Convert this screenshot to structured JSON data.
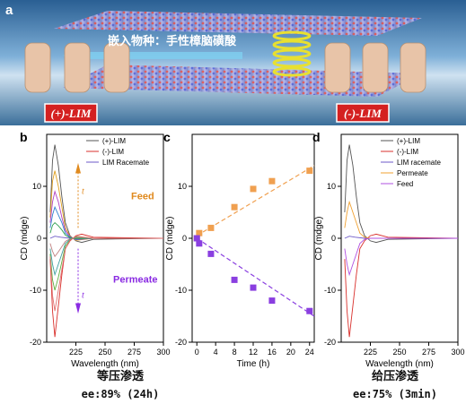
{
  "panel_a": {
    "letter": "a",
    "caption": "嵌入物种：手性樟脑磺酸",
    "label_left": "(+)-LIM",
    "label_right": "(-)-LIM"
  },
  "footer": {
    "left_title": "等压渗透",
    "left_ee": "ee:89% (24h)",
    "right_title": "给压渗透",
    "right_ee": "ee:75% (3min)"
  },
  "colors": {
    "plus": "#555555",
    "minus": "#d9302c",
    "racemate": "#6e5ac8",
    "permeate_line": "#f0a030",
    "feed_line": "#b050e0",
    "feed_text": "#e08a1e",
    "permeate_text": "#8a2be2",
    "feed_marker": "#f0a050",
    "perm_marker": "#8a3fe0"
  },
  "chart_data": [
    {
      "id": "b",
      "letter": "b",
      "type": "line",
      "xlabel": "Wavelength (nm)",
      "ylabel": "CD (mdge)",
      "xlim": [
        200,
        300
      ],
      "ylim": [
        -20,
        20
      ],
      "xticks": [
        225,
        250,
        275,
        300
      ],
      "yticks": [
        -20,
        -10,
        0,
        10
      ],
      "legend": [
        "(+)-LIM",
        "(-)-LIM",
        "LIM Racemate"
      ],
      "annotations": [
        "Feed",
        "Permeate",
        "t",
        "t"
      ],
      "series": [
        {
          "name": "(+)-LIM",
          "color": "plus",
          "x": [
            203,
            205,
            207,
            210,
            213,
            216,
            220,
            225,
            230,
            240,
            300
          ],
          "y": [
            5,
            15,
            18,
            14,
            8,
            3,
            0.5,
            -0.5,
            -0.8,
            -0.2,
            0
          ]
        },
        {
          "name": "(-)-LIM",
          "color": "minus",
          "x": [
            203,
            205,
            207,
            210,
            213,
            216,
            220,
            225,
            230,
            240,
            300
          ],
          "y": [
            -4,
            -14,
            -19,
            -13,
            -7,
            -2,
            -0.5,
            0.5,
            0.8,
            0.2,
            0
          ]
        },
        {
          "name": "LIM Racemate",
          "color": "racemate",
          "x": [
            203,
            207,
            212,
            220,
            230,
            300
          ],
          "y": [
            0,
            0.4,
            0.2,
            0,
            0,
            0
          ]
        },
        {
          "name": "",
          "color": "#e0a020",
          "x": [
            203,
            205,
            207,
            210,
            213,
            216,
            220,
            225,
            240,
            300
          ],
          "y": [
            4,
            11,
            13,
            10,
            6,
            2,
            0.4,
            -0.4,
            0,
            0
          ]
        },
        {
          "name": "",
          "color": "#b040c0",
          "x": [
            203,
            205,
            207,
            210,
            213,
            216,
            220,
            225,
            240,
            300
          ],
          "y": [
            3,
            7,
            9,
            7,
            4,
            1.5,
            0.3,
            -0.3,
            0,
            0
          ]
        },
        {
          "name": "",
          "color": "#3080d0",
          "x": [
            203,
            205,
            207,
            210,
            213,
            216,
            220,
            225,
            240,
            300
          ],
          "y": [
            2,
            4.5,
            6,
            4.5,
            3,
            1,
            0.2,
            -0.2,
            0,
            0
          ]
        },
        {
          "name": "",
          "color": "#30a050",
          "x": [
            203,
            205,
            207,
            210,
            213,
            216,
            220,
            225,
            240,
            300
          ],
          "y": [
            1,
            2.5,
            3,
            2.4,
            1.6,
            0.6,
            0.1,
            -0.1,
            0,
            0
          ]
        },
        {
          "name": "",
          "color": "#c08080",
          "x": [
            203,
            205,
            207,
            210,
            213,
            216,
            220,
            225,
            240,
            300
          ],
          "y": [
            -1,
            -2.5,
            -3.5,
            -2.6,
            -1.6,
            -0.6,
            -0.1,
            0.1,
            0,
            0
          ]
        },
        {
          "name": "",
          "color": "#40a0a0",
          "x": [
            203,
            205,
            207,
            210,
            213,
            216,
            220,
            225,
            240,
            300
          ],
          "y": [
            -2,
            -5,
            -7,
            -5,
            -3,
            -1,
            -0.2,
            0.2,
            0,
            0
          ]
        },
        {
          "name": "",
          "color": "#60b040",
          "x": [
            203,
            205,
            207,
            210,
            213,
            216,
            220,
            225,
            240,
            300
          ],
          "y": [
            -3,
            -8,
            -10,
            -7.5,
            -4.5,
            -1.5,
            -0.3,
            0.3,
            0,
            0
          ]
        },
        {
          "name": "",
          "color": "#e07070",
          "x": [
            203,
            205,
            207,
            210,
            213,
            216,
            220,
            225,
            240,
            300
          ],
          "y": [
            -3.5,
            -11,
            -14,
            -10,
            -6,
            -2,
            -0.4,
            0.4,
            0,
            0
          ]
        }
      ]
    },
    {
      "id": "c",
      "letter": "c",
      "type": "scatter",
      "xlabel": "Time (h)",
      "ylabel": "CD (mdge)",
      "xlim": [
        -1,
        25
      ],
      "ylim": [
        -20,
        20
      ],
      "xticks": [
        0,
        4,
        8,
        12,
        16,
        20,
        24
      ],
      "yticks": [
        -20,
        -10,
        0,
        10
      ],
      "series": [
        {
          "name": "Feed",
          "color": "feed_marker",
          "x": [
            0,
            0.5,
            3,
            8,
            12,
            16,
            24
          ],
          "y": [
            0,
            1,
            2,
            6,
            9.5,
            11,
            13
          ]
        },
        {
          "name": "Permeate",
          "color": "perm_marker",
          "x": [
            0,
            0.5,
            3,
            8,
            12,
            16,
            24
          ],
          "y": [
            0,
            -1,
            -3,
            -8,
            -9.5,
            -12,
            -14
          ]
        }
      ],
      "fits": [
        {
          "color": "feed_marker",
          "x": [
            0,
            25
          ],
          "y": [
            0.5,
            14
          ]
        },
        {
          "color": "perm_marker",
          "x": [
            0,
            25
          ],
          "y": [
            0,
            -15
          ]
        }
      ]
    },
    {
      "id": "d",
      "letter": "d",
      "type": "line",
      "xlabel": "Wavelength (nm)",
      "ylabel": "CD (mdge)",
      "xlim": [
        200,
        300
      ],
      "ylim": [
        -20,
        20
      ],
      "xticks": [
        225,
        250,
        275,
        300
      ],
      "yticks": [
        -20,
        -10,
        0,
        10
      ],
      "legend": [
        "(+)-LIM",
        "(-)-LIM",
        "LIM racemate",
        "Permeate",
        "Feed"
      ],
      "series": [
        {
          "name": "(+)-LIM",
          "color": "plus",
          "x": [
            203,
            205,
            207,
            210,
            213,
            216,
            220,
            225,
            230,
            240,
            300
          ],
          "y": [
            5,
            15,
            18,
            14,
            8,
            3,
            0.5,
            -0.5,
            -0.8,
            -0.2,
            0
          ]
        },
        {
          "name": "(-)-LIM",
          "color": "minus",
          "x": [
            203,
            205,
            207,
            210,
            213,
            216,
            220,
            225,
            230,
            240,
            300
          ],
          "y": [
            -4,
            -14,
            -19,
            -13,
            -7,
            -2,
            -0.5,
            0.5,
            0.8,
            0.2,
            0
          ]
        },
        {
          "name": "LIM racemate",
          "color": "racemate",
          "x": [
            203,
            207,
            212,
            220,
            230,
            300
          ],
          "y": [
            0,
            0.4,
            0.2,
            0,
            0,
            0
          ]
        },
        {
          "name": "Permeate",
          "color": "permeate_line",
          "x": [
            203,
            205,
            207,
            210,
            213,
            216,
            220,
            225,
            240,
            300
          ],
          "y": [
            2,
            5,
            7,
            5,
            3,
            1,
            0.2,
            0,
            0,
            0
          ]
        },
        {
          "name": "Feed",
          "color": "feed_line",
          "x": [
            203,
            205,
            207,
            210,
            213,
            216,
            220,
            225,
            240,
            300
          ],
          "y": [
            -2,
            -5,
            -7,
            -5,
            -3,
            -1,
            -0.2,
            0,
            0,
            0
          ]
        }
      ]
    }
  ]
}
